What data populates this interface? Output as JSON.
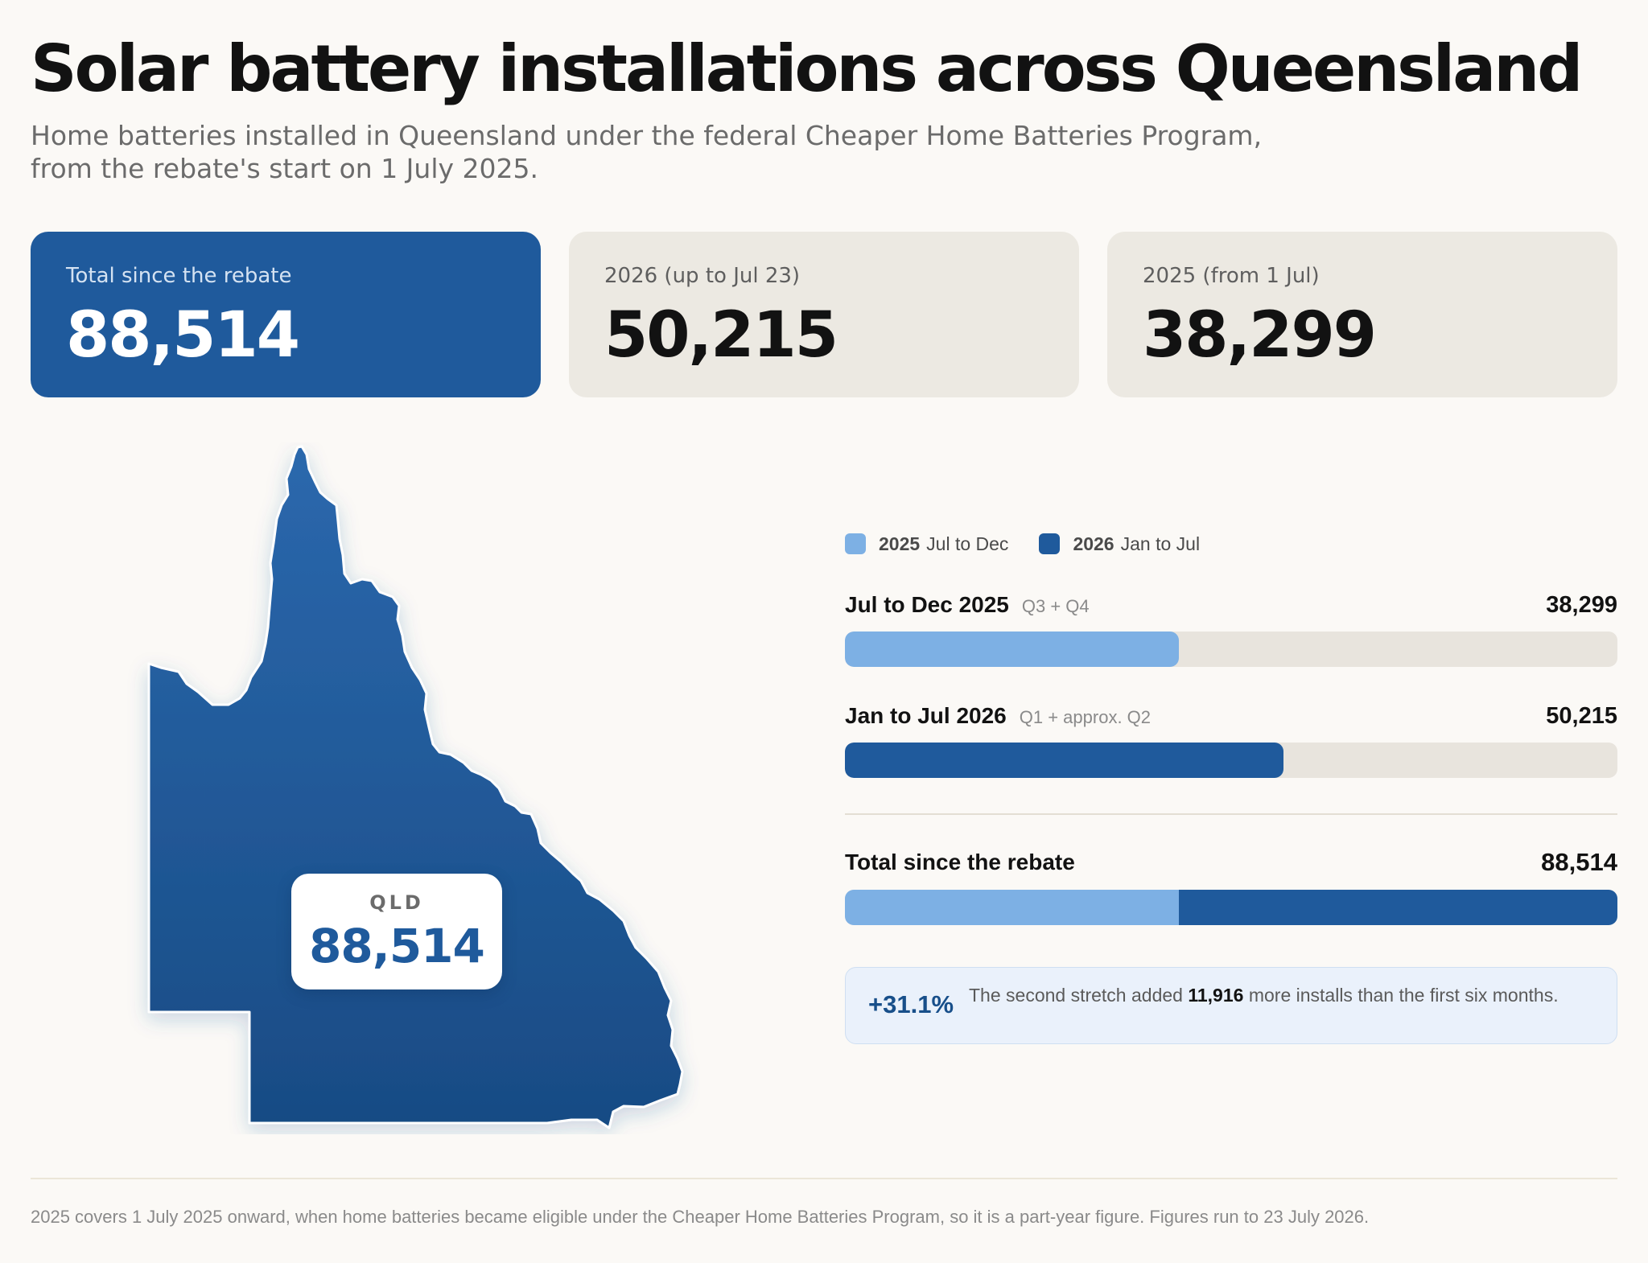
{
  "header": {
    "title": "Solar battery installations across Queensland",
    "subtitle": "Home batteries installed in Queensland under the federal Cheaper Home Batteries Program, from the rebate's start on 1 July 2025."
  },
  "cards": [
    {
      "label": "Total since the rebate",
      "value": "88,514"
    },
    {
      "label": "2026 (up to Jul 23)",
      "value": "50,215"
    },
    {
      "label": "2025 (from 1 Jul)",
      "value": "38,299"
    }
  ],
  "map": {
    "region_code": "QLD",
    "region_value": "88,514",
    "fill_top": "#2b68ad",
    "fill_bottom": "#184b84"
  },
  "chart_data": {
    "type": "bar",
    "orientation": "horizontal",
    "xlim": [
      0,
      88514
    ],
    "legend_placement": "top-left",
    "legend": [
      {
        "year": "2025",
        "period": "Jul to Dec",
        "color": "#7db0e4"
      },
      {
        "year": "2026",
        "period": "Jan to Jul",
        "color": "#1f5a9c"
      }
    ],
    "rows": [
      {
        "label": "Jul to Dec 2025",
        "note": "Q3 + Q4",
        "value": 38299,
        "value_label": "38,299",
        "color": "#7db0e4"
      },
      {
        "label": "Jan to Jul 2026",
        "note": "Q1 + approx. Q2",
        "value": 50215,
        "value_label": "50,215",
        "color": "#1f5a9c"
      }
    ],
    "total": {
      "label": "Total since the rebate",
      "value": 88514,
      "value_label": "88,514",
      "segments": [
        {
          "value": 38299,
          "color": "#7db0e4"
        },
        {
          "value": 50215,
          "color": "#1f5a9c"
        }
      ]
    },
    "callout": {
      "pct": "+31.1%",
      "text_before": "The second stretch added",
      "highlight": "11,916",
      "text_after": "more installs than the first six months."
    }
  },
  "footer": {
    "note": "2025 covers 1 July 2025 onward, when home batteries became eligible under the Cheaper Home Batteries Program, so it is a part-year figure. Figures run to 23 July 2026."
  },
  "colors": {
    "accent": "#1f5a9c",
    "light_accent": "#7db0e4",
    "card_bg": "#ece9e2",
    "page_bg": "#fbf9f6"
  }
}
